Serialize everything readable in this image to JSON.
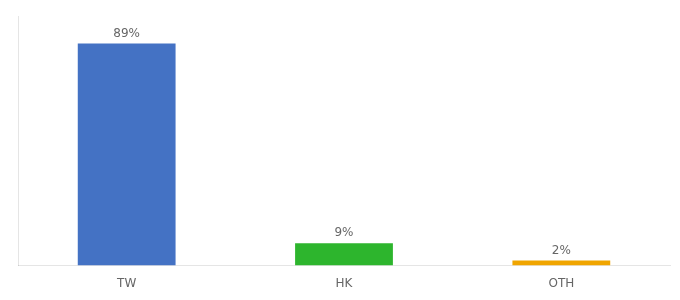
{
  "chart_data": {
    "type": "bar",
    "categories": [
      "TW",
      "HK",
      "OTH"
    ],
    "values": [
      89,
      9,
      2
    ],
    "value_labels": [
      "89%",
      "9%",
      "2%"
    ],
    "data_labels": true,
    "colors": [
      "#4472c4",
      "#2db52d",
      "#f0a500"
    ],
    "ylim": [
      0,
      100
    ],
    "grid": false,
    "tick_labels": "x"
  }
}
